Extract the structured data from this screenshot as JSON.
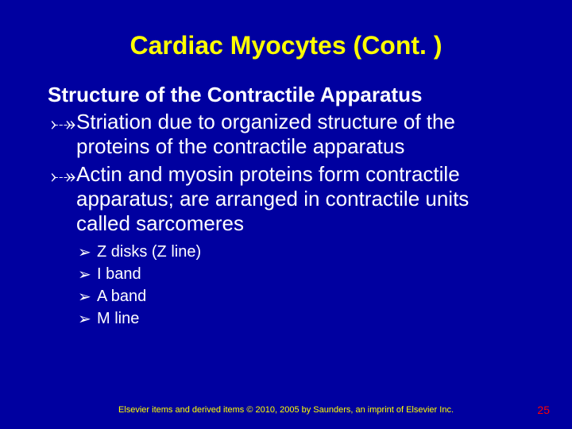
{
  "colors": {
    "background": "#0000a0",
    "title": "#ffff00",
    "body_text": "#ffffff",
    "footer": "#ffff00",
    "pagenum": "#ff0000"
  },
  "typography": {
    "title_fontsize": 32,
    "title_weight": "bold",
    "subheading_fontsize": 26,
    "subheading_weight": "bold",
    "body_fontsize": 26,
    "body_weight": "normal",
    "subbullet_fontsize": 20,
    "footer_fontsize": 11,
    "pagenum_fontsize": 14,
    "line_height": 1.2
  },
  "bullet_marks": {
    "level1": "⤐",
    "level2": "➢"
  },
  "title": "Cardiac Myocytes (Cont. )",
  "subheading": "Structure of the Contractile Apparatus",
  "bullets": [
    {
      "text": "Striation due to organized structure of the proteins of the contractile apparatus"
    },
    {
      "text": "Actin and myosin proteins form contractile apparatus; are arranged in contractile units called sarcomeres"
    }
  ],
  "subbullets": [
    {
      "text": "Z disks (Z line)"
    },
    {
      "text": "I band"
    },
    {
      "text": "A band"
    },
    {
      "text": "M line"
    }
  ],
  "footer": "Elsevier items and derived items © 2010, 2005 by Saunders, an imprint of Elsevier Inc.",
  "page_number": "25"
}
